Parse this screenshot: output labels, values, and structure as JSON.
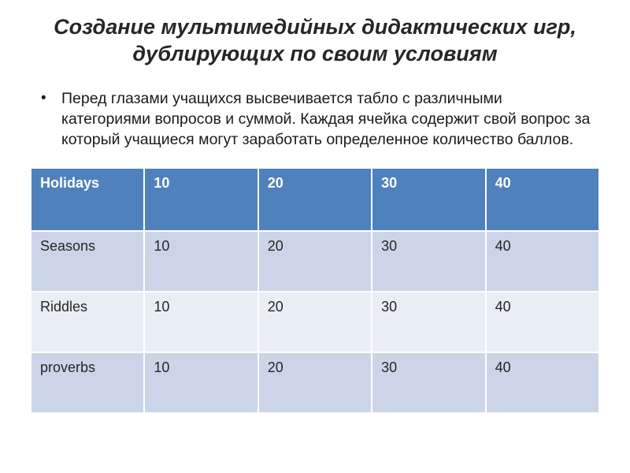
{
  "slide": {
    "title_lines": [
      "Создание мультимедийных дидактических игр,",
      "дублирующих по своим условиям"
    ],
    "bullet_marker": "•",
    "bullet_text": "Перед глазами учащихся высвечивается табло с различными категориями вопросов и суммой. Каждая ячейка содержит свой вопрос за который учащиеся могут заработать определенное количество баллов."
  },
  "table": {
    "header": [
      "Holidays",
      "10",
      "20",
      "30",
      "40"
    ],
    "rows": [
      [
        "Seasons",
        "10",
        "20",
        "30",
        "40"
      ],
      [
        "Riddles",
        "10",
        "20",
        "30",
        "40"
      ],
      [
        "proverbs",
        "10",
        "20",
        "30",
        "40"
      ]
    ]
  },
  "colors": {
    "header_bg": "#4f81bd",
    "header_text": "#ffffff",
    "row_odd_bg": "#ccd5e8",
    "row_even_bg": "#e9edf5",
    "title_text": "#262626",
    "body_text": "#1a1a1a"
  }
}
